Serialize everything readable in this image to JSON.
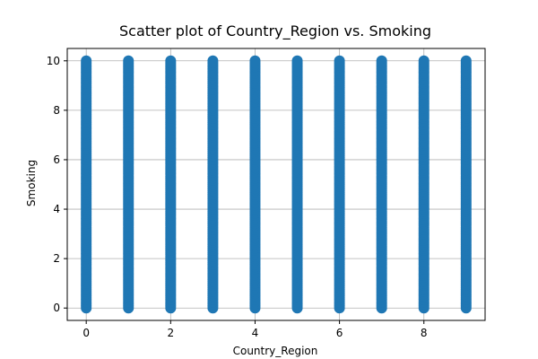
{
  "chart_data": {
    "type": "scatter",
    "title": "Scatter plot of Country_Region vs. Smoking",
    "xlabel": "Country_Region",
    "ylabel": "Smoking",
    "xlim": [
      -0.45,
      9.45
    ],
    "ylim": [
      -0.5,
      10.5
    ],
    "xticks": [
      0,
      2,
      4,
      6,
      8
    ],
    "yticks": [
      0,
      2,
      4,
      6,
      8,
      10
    ],
    "grid": true,
    "marker_color": "#1f77b4",
    "x_categories": [
      0,
      1,
      2,
      3,
      4,
      5,
      6,
      7,
      8,
      9
    ],
    "y_range_per_category": [
      0,
      10
    ]
  }
}
